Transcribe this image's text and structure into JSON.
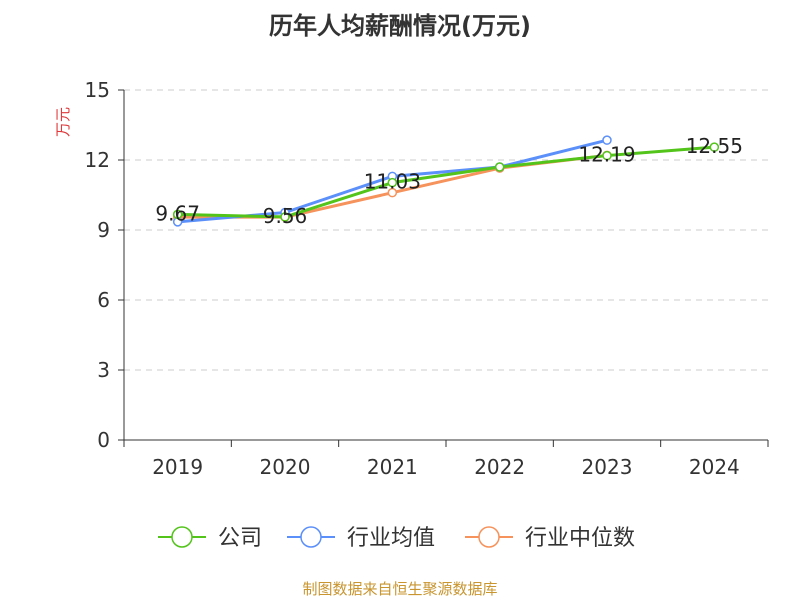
{
  "title": "历年人均薪酬情况(万元)",
  "source": "制图数据来自恒生聚源数据库",
  "chart_data": {
    "type": "line",
    "title": "历年人均薪酬情况(万元)",
    "ylabel": "万元",
    "xlabel": "",
    "categories": [
      "2019",
      "2020",
      "2021",
      "2022",
      "2023",
      "2024"
    ],
    "ylim": [
      0,
      15
    ],
    "yticks": [
      0,
      3,
      6,
      9,
      12,
      15
    ],
    "grid": true,
    "legend_position": "bottom",
    "series": [
      {
        "name": "公司",
        "color": "#52c41a",
        "values": [
          9.67,
          9.56,
          11.03,
          11.7,
          12.19,
          12.55
        ]
      },
      {
        "name": "行业均值",
        "color": "#5b8ff9",
        "values": [
          9.35,
          9.75,
          11.3,
          11.7,
          12.85,
          null
        ]
      },
      {
        "name": "行业中位数",
        "color": "#f6925b",
        "values": [
          9.55,
          9.55,
          10.6,
          11.65,
          12.2,
          null
        ]
      }
    ],
    "data_labels": [
      {
        "series": 0,
        "index": 0,
        "text": "9.67"
      },
      {
        "series": 0,
        "index": 1,
        "text": "9.56"
      },
      {
        "series": 0,
        "index": 2,
        "text": "11.03"
      },
      {
        "series": 0,
        "index": 4,
        "text": "12.19"
      },
      {
        "series": 0,
        "index": 5,
        "text": "12.55"
      }
    ]
  }
}
